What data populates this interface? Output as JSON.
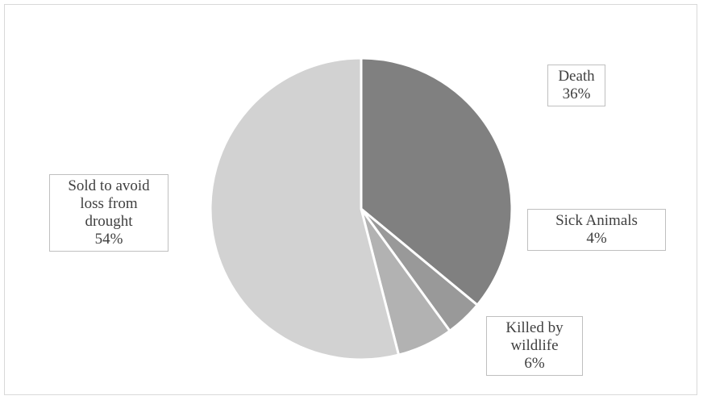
{
  "chart_data": {
    "type": "pie",
    "slices": [
      {
        "name": "Death",
        "value": 36,
        "label_lines": [
          "Death",
          "36%"
        ],
        "color": "#808080"
      },
      {
        "name": "Sick Animals",
        "value": 4,
        "label_lines": [
          "Sick Animals",
          "4%"
        ],
        "color": "#999999"
      },
      {
        "name": "Killed by wildlife",
        "value": 6,
        "label_lines": [
          "Killed by",
          "wildlife",
          "6%"
        ],
        "color": "#b2b2b2"
      },
      {
        "name": "Sold to avoid loss from drought",
        "value": 54,
        "label_lines": [
          "Sold to avoid",
          "loss from",
          "drought",
          "54%"
        ],
        "color": "#d2d2d2"
      }
    ],
    "start_angle_deg": 0,
    "direction": "clockwise",
    "slice_border_color": "#ffffff",
    "legend": "none"
  }
}
